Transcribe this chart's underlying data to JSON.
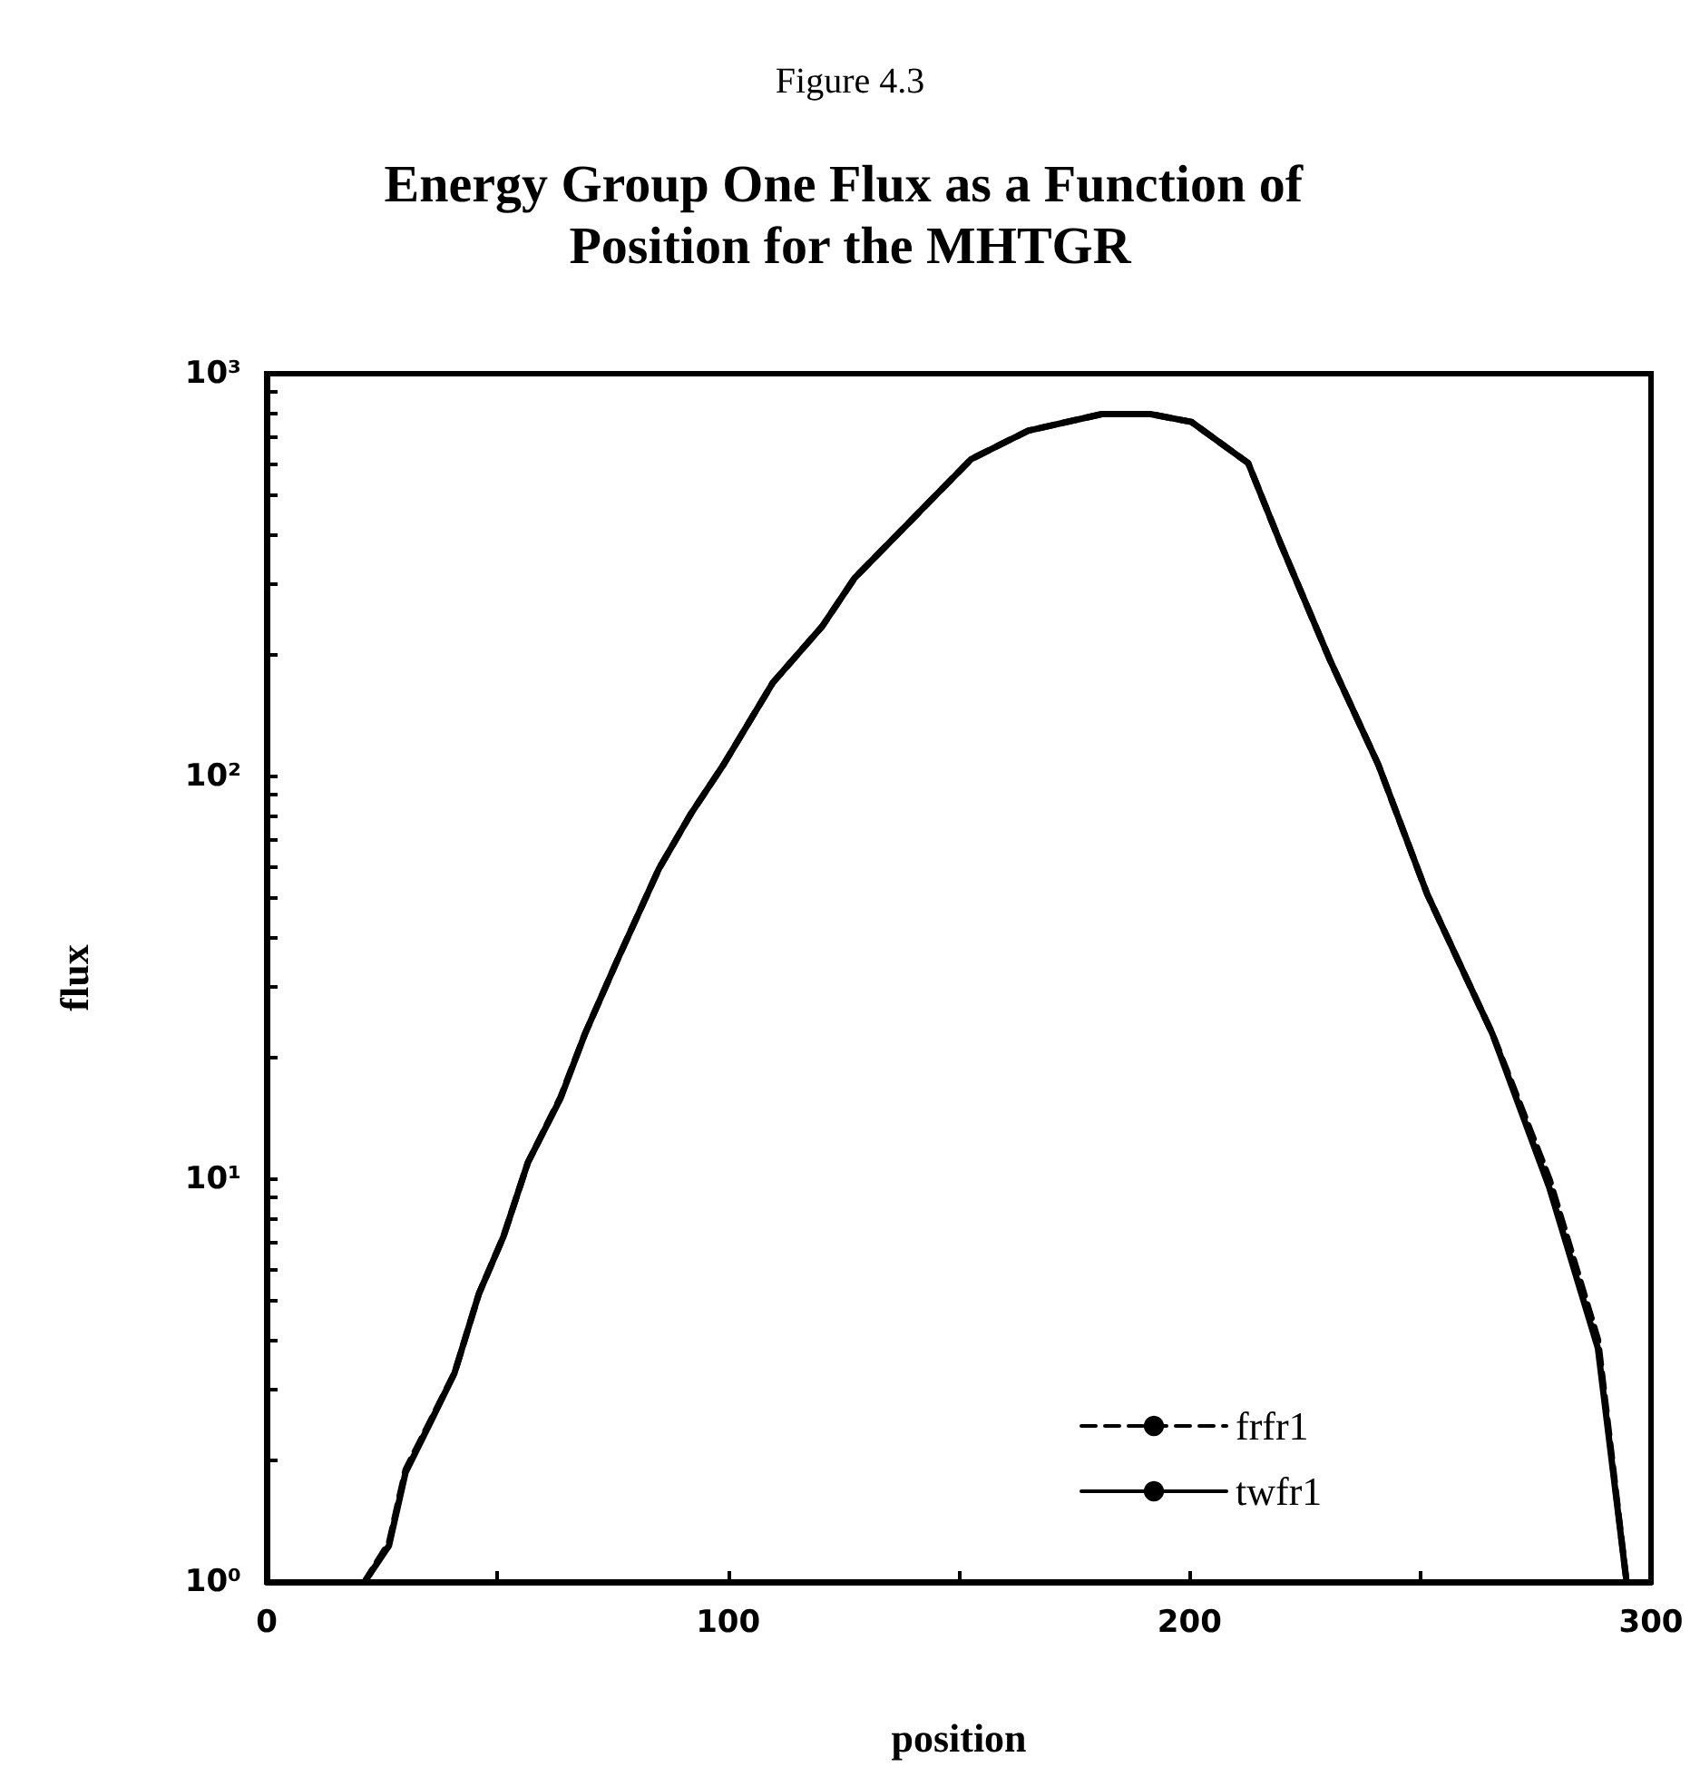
{
  "chart_data": {
    "type": "line",
    "subtitle": "Figure 4.3",
    "title": "Energy Group One Flux as a Function of Position for the MHTGR",
    "xlabel": "position",
    "ylabel": "flux",
    "log": "y",
    "xlim": [
      0,
      300
    ],
    "ylim": [
      1,
      1000
    ],
    "xticks": [
      0,
      {
        "value": 50,
        "label": null
      },
      100,
      {
        "value": 150,
        "label": null
      },
      200,
      {
        "value": 250,
        "label": null
      },
      300
    ],
    "yticks": [
      {
        "value": 1,
        "label": "10⁰"
      },
      {
        "value": 2,
        "label": null
      },
      {
        "value": 3,
        "label": null
      },
      {
        "value": 4,
        "label": null
      },
      {
        "value": 5,
        "label": null
      },
      {
        "value": 6,
        "label": null
      },
      {
        "value": 7,
        "label": null
      },
      {
        "value": 8,
        "label": null
      },
      {
        "value": 9,
        "label": null
      },
      {
        "value": 10,
        "label": "10¹"
      },
      {
        "value": 20,
        "label": null
      },
      {
        "value": 30,
        "label": null
      },
      {
        "value": 40,
        "label": null
      },
      {
        "value": 50,
        "label": null
      },
      {
        "value": 60,
        "label": null
      },
      {
        "value": 70,
        "label": null
      },
      {
        "value": 80,
        "label": null
      },
      {
        "value": 90,
        "label": null
      },
      {
        "value": 100,
        "label": "10²"
      },
      {
        "value": 200,
        "label": null
      },
      {
        "value": 300,
        "label": null
      },
      {
        "value": 400,
        "label": null
      },
      {
        "value": 500,
        "label": null
      },
      {
        "value": 600,
        "label": null
      },
      {
        "value": 700,
        "label": null
      },
      {
        "value": 800,
        "label": null
      },
      {
        "value": 900,
        "label": null
      },
      {
        "value": 1000,
        "label": "10³"
      }
    ],
    "legend": "bottom right",
    "grid": false,
    "x": [
      21.2,
      26.5,
      30.1,
      35.4,
      40.7,
      46,
      51.3,
      56.6,
      63.7,
      69,
      76,
      85,
      92,
      99,
      109.7,
      120.4,
      127.4,
      139.8,
      152.7,
      165,
      181,
      191.5,
      200.4,
      212.7,
      219.8,
      230.3,
      240.9,
      251.5,
      265.6,
      278,
      288.5,
      294.7
    ],
    "series": [
      {
        "name": "frfr1",
        "color": "#000000",
        "line_style": "dashed",
        "values": [
          1,
          1.25,
          1.9,
          2.5,
          3.3,
          5.2,
          7.2,
          11,
          16,
          23,
          35,
          59,
          81,
          107,
          171,
          236,
          311,
          434,
          614,
          722,
          794,
          794,
          759,
          600,
          377,
          196,
          107,
          51,
          23,
          10,
          4,
          1
        ]
      },
      {
        "name": "twfr1",
        "color": "#000000",
        "line_style": "solid",
        "values": [
          1,
          1.23,
          1.87,
          2.48,
          3.3,
          5.2,
          7.2,
          11,
          15.9,
          23,
          35,
          59,
          81,
          107,
          171,
          236,
          311,
          434,
          614,
          722,
          794,
          794,
          759,
          600,
          377,
          196,
          107,
          51,
          23,
          9.5,
          3.8,
          1
        ]
      }
    ]
  }
}
